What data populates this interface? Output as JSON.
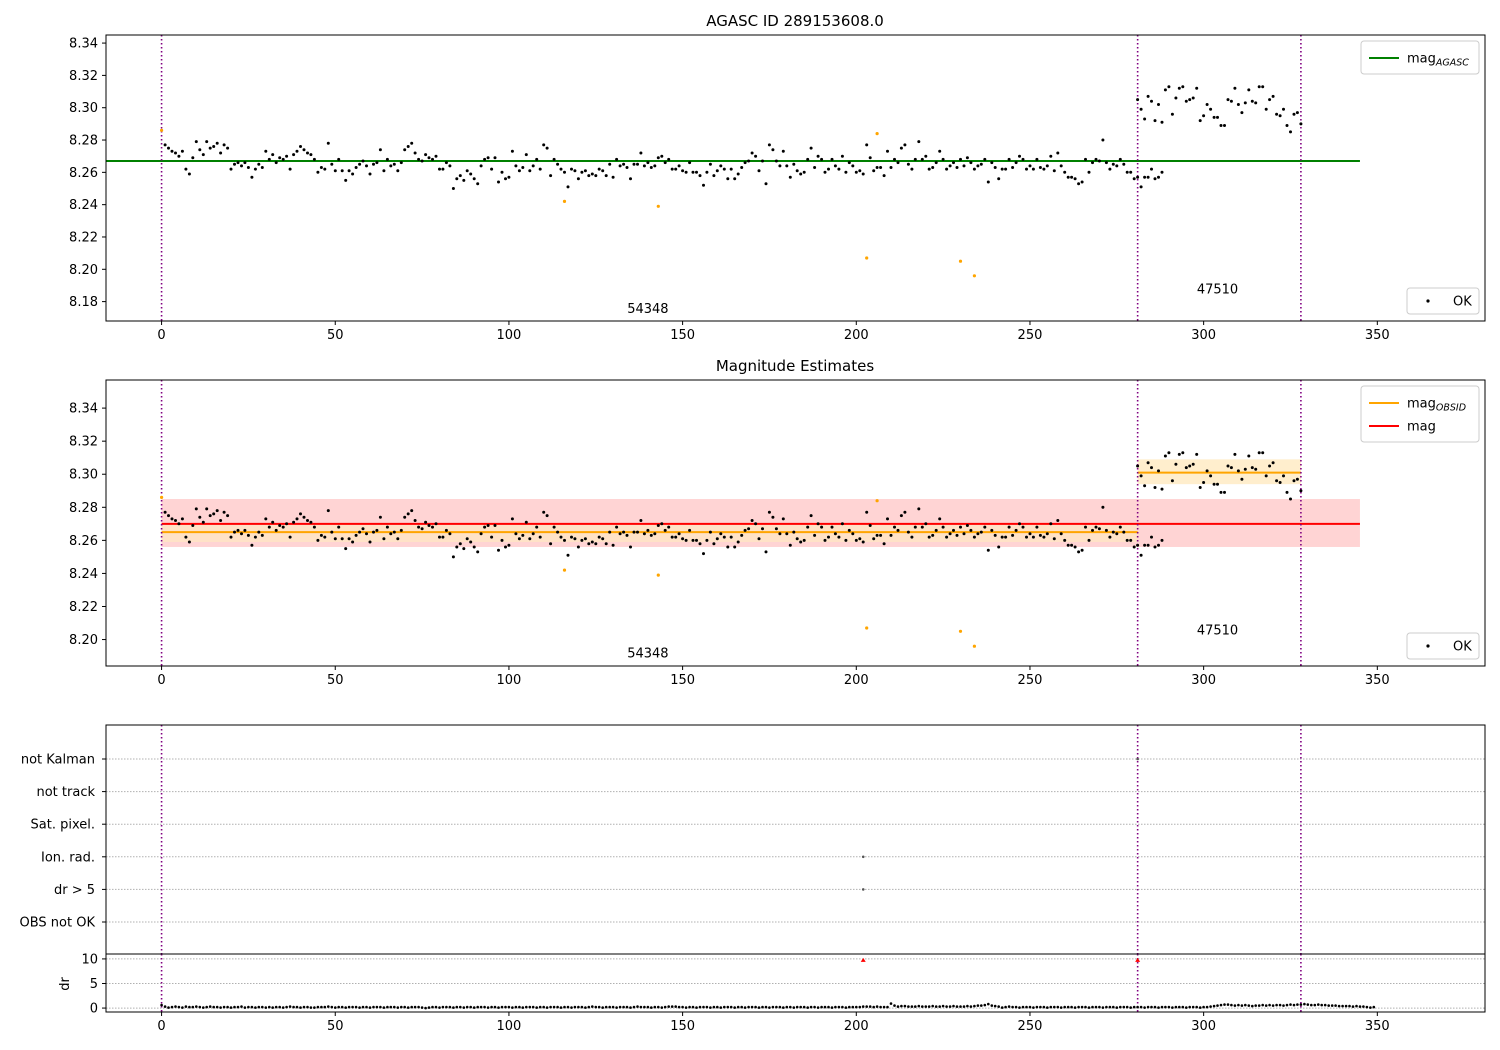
{
  "figure": {
    "title": "AGASC ID 289153608.0",
    "subtitle": "Magnitude Estimates"
  },
  "colors": {
    "ok_point": "#000000",
    "suspect_point": "#ffa500",
    "mag_agasc": "#008000",
    "mag_obsid": "#ffa500",
    "mag": "#ff0000",
    "mag_band": "#ffcccc",
    "obsid_band": "#ffebc4",
    "obs_boundary": "#800080",
    "grid": "#b0b0b0",
    "flag_point": "#ff0000"
  },
  "chart_data": [
    {
      "id": "agasc",
      "type": "scatter",
      "title": "AGASC ID 289153608.0",
      "xlim": [
        -16,
        381
      ],
      "ylim": [
        8.168,
        8.345
      ],
      "xticks": [
        0,
        50,
        100,
        150,
        200,
        250,
        300,
        350
      ],
      "yticks": [
        8.18,
        8.2,
        8.22,
        8.24,
        8.26,
        8.28,
        8.3,
        8.32,
        8.34
      ],
      "legend": [
        {
          "label": "mag",
          "sub": "AGASC",
          "kind": "line",
          "color": "#008000",
          "placement": "top-right"
        },
        {
          "label": "OK",
          "kind": "point",
          "color": "#000000",
          "placement": "bottom-right"
        }
      ],
      "hlines": [
        {
          "name": "mag_AGASC",
          "y": 8.267,
          "x": [
            -16,
            345
          ],
          "color": "#008000"
        }
      ],
      "vlines": [
        0,
        281,
        328
      ],
      "obsid_labels": [
        {
          "text": "54348",
          "x": 140,
          "y": 8.173
        },
        {
          "text": "47510",
          "x": 304,
          "y": 8.185
        }
      ],
      "series": [
        {
          "name": "OK",
          "color": "#000000",
          "x_start": 1,
          "y": [
            8.277,
            8.275,
            8.273,
            8.272,
            8.27,
            8.273,
            8.262,
            8.259,
            8.269,
            8.279,
            8.274,
            8.271,
            8.279,
            8.275,
            8.276,
            8.278,
            8.272,
            8.277,
            8.275,
            8.262,
            8.265,
            8.266,
            8.264,
            8.266,
            8.263,
            8.257,
            8.262,
            8.265,
            8.263,
            8.273,
            8.268,
            8.271,
            8.266,
            8.269,
            8.268,
            8.27,
            8.262,
            8.271,
            8.273,
            8.276,
            8.274,
            8.272,
            8.271,
            8.268,
            8.26,
            8.263,
            8.262,
            8.278,
            8.265,
            8.261,
            8.268,
            8.261,
            8.255,
            8.261,
            8.259,
            8.263,
            8.265,
            8.267,
            8.264,
            8.259,
            8.265,
            8.266,
            8.274,
            8.261,
            8.268,
            8.264,
            8.265,
            8.261,
            8.266,
            8.274,
            8.276,
            8.278,
            8.272,
            8.268,
            8.267,
            8.271,
            8.269,
            8.268,
            8.27,
            8.262,
            8.262,
            8.266,
            8.264,
            8.25,
            8.256,
            8.258,
            8.255,
            8.261,
            8.259,
            8.256,
            8.253,
            8.264,
            8.268,
            8.269,
            8.262,
            8.269,
            8.254,
            8.26,
            8.256,
            8.257,
            8.273,
            8.264,
            8.261,
            8.263,
            8.271,
            8.261,
            8.264,
            8.268,
            8.262,
            8.277,
            8.275,
            8.258,
            8.268,
            8.265,
            8.262,
            8.26,
            8.251,
            8.262,
            8.261,
            8.256,
            8.26,
            8.261,
            8.258,
            8.259,
            8.258,
            8.262,
            8.261,
            8.258,
            8.265,
            8.257,
            8.268,
            8.264,
            8.265,
            8.263,
            8.256,
            8.265,
            8.265,
            8.272,
            8.264,
            8.266,
            8.263,
            8.264,
            8.269,
            8.27,
            8.266,
            8.268,
            8.262,
            8.262,
            8.264,
            8.261,
            8.26,
            8.266,
            8.26,
            8.26,
            8.258,
            8.252,
            8.26,
            8.265,
            8.258,
            8.261,
            8.264,
            8.262,
            8.256,
            8.262,
            8.256,
            8.259,
            8.263,
            8.266,
            8.267,
            8.272,
            8.27,
            8.261,
            8.267,
            8.253,
            8.277,
            8.274,
            8.267,
            8.264,
            8.273,
            8.264,
            8.257,
            8.265,
            8.261,
            8.259,
            8.26,
            8.268,
            8.275,
            8.263,
            8.27,
            8.268,
            8.26,
            8.262,
            8.268,
            8.264,
            8.262,
            8.27,
            8.26,
            8.266,
            8.264,
            8.26,
            8.261,
            8.259,
            8.277,
            8.269,
            8.261,
            8.263,
            8.263,
            8.258,
            8.273,
            8.263,
            8.268,
            8.266,
            8.275,
            8.277,
            8.265,
            8.262,
            8.268,
            8.279,
            8.268,
            8.27,
            8.262,
            8.263,
            8.266,
            8.273,
            8.268,
            8.262,
            8.264,
            8.266,
            8.263,
            8.268,
            8.264,
            8.269,
            8.266,
            8.262,
            8.264,
            8.265,
            8.268,
            8.254,
            8.266,
            8.263,
            8.256,
            8.262,
            8.262,
            8.268,
            8.263,
            8.266,
            8.27,
            8.268,
            8.262,
            8.264,
            8.262,
            8.268,
            8.263,
            8.262,
            8.264,
            8.27,
            8.261,
            8.272,
            8.264,
            8.26,
            8.257,
            8.257,
            8.256,
            8.253,
            8.254,
            8.268,
            8.26,
            8.266,
            8.268,
            8.267,
            8.28,
            8.266,
            8.262,
            8.265,
            8.264,
            8.268,
            8.265,
            8.26,
            8.26,
            8.256,
            8.257,
            8.251,
            8.257,
            8.257,
            8.262,
            8.256,
            8.257,
            8.26
          ]
        },
        {
          "name": "OK-obs2",
          "color": "#000000",
          "x_start": 281,
          "y": [
            8.305,
            8.299,
            8.293,
            8.307,
            8.304,
            8.292,
            8.302,
            8.291,
            8.311,
            8.313,
            8.296,
            8.306,
            8.312,
            8.313,
            8.304,
            8.305,
            8.306,
            8.312,
            8.292,
            8.295,
            8.302,
            8.299,
            8.294,
            8.294,
            8.289,
            8.289,
            8.305,
            8.304,
            8.312,
            8.302,
            8.297,
            8.303,
            8.311,
            8.304,
            8.303,
            8.313,
            8.313,
            8.299,
            8.305,
            8.307,
            8.296,
            8.295,
            8.299,
            8.289,
            8.285,
            8.296,
            8.297,
            8.29
          ]
        },
        {
          "name": "suspect",
          "color": "#ffa500",
          "points": [
            [
              0,
              8.286
            ],
            [
              116,
              8.242
            ],
            [
              143,
              8.239
            ],
            [
              203,
              8.207
            ],
            [
              206,
              8.284
            ],
            [
              230,
              8.205
            ],
            [
              234,
              8.196
            ]
          ]
        }
      ]
    },
    {
      "id": "estimates",
      "type": "scatter",
      "title": "Magnitude Estimates",
      "xlim": [
        -16,
        381
      ],
      "ylim": [
        8.184,
        8.357
      ],
      "xticks": [
        0,
        50,
        100,
        150,
        200,
        250,
        300,
        350
      ],
      "yticks": [
        8.2,
        8.22,
        8.24,
        8.26,
        8.28,
        8.3,
        8.32,
        8.34
      ],
      "legend": [
        {
          "label": "mag",
          "sub": "OBSID",
          "kind": "line",
          "color": "#ffa500",
          "placement": "top-right"
        },
        {
          "label": "mag",
          "kind": "line",
          "color": "#ff0000",
          "placement": "top-right"
        },
        {
          "label": "OK",
          "kind": "point",
          "color": "#000000",
          "placement": "bottom-right"
        }
      ],
      "bands": [
        {
          "name": "mag",
          "y": [
            8.256,
            8.285
          ],
          "x": [
            0,
            345
          ],
          "color": "#ffcccc"
        },
        {
          "name": "mag_OBSID-1",
          "y": [
            8.259,
            8.27
          ],
          "x": [
            0,
            281
          ],
          "color": "#ffe4c4"
        },
        {
          "name": "mag_OBSID-2",
          "y": [
            8.294,
            8.309
          ],
          "x": [
            281,
            328
          ],
          "color": "#ffebc4"
        }
      ],
      "hlines": [
        {
          "name": "mag",
          "y": 8.27,
          "x": [
            0,
            345
          ],
          "color": "#ff0000"
        },
        {
          "name": "mag_OBSID-1",
          "y": 8.265,
          "x": [
            0,
            281
          ],
          "color": "#ffa500"
        },
        {
          "name": "mag_OBSID-2",
          "y": 8.301,
          "x": [
            281,
            328
          ],
          "color": "#ffa500"
        }
      ],
      "vlines": [
        0,
        281,
        328
      ],
      "obsid_labels": [
        {
          "text": "54348",
          "x": 140,
          "y": 8.189
        },
        {
          "text": "47510",
          "x": 304,
          "y": 8.203
        }
      ],
      "reuse_series_from": "agasc"
    },
    {
      "id": "flags",
      "type": "scatter",
      "xlim": [
        -16,
        381
      ],
      "categories": [
        "not Kalman",
        "not track",
        "Sat. pixel.",
        "Ion. rad.",
        "dr > 5",
        "OBS not OK"
      ],
      "flag_points": [
        {
          "category": "not Kalman",
          "x": 281
        },
        {
          "category": "Ion. rad.",
          "x": 202
        },
        {
          "category": "dr > 5",
          "x": 202
        }
      ],
      "vlines": [
        0,
        281,
        328
      ]
    },
    {
      "id": "dr",
      "type": "scatter",
      "ylabel": "dr",
      "xlim": [
        -16,
        381
      ],
      "ylim": [
        -0.8,
        11
      ],
      "yticks": [
        0,
        5,
        10
      ],
      "xticks": [
        0,
        50,
        100,
        150,
        200,
        250,
        300,
        350
      ],
      "vlines": [
        0,
        281,
        328
      ],
      "series": [
        {
          "name": "dr",
          "color": "#000000",
          "x_start": 0,
          "y": [
            0.6,
            0.3,
            0.1,
            0.2,
            0.3,
            0.2,
            0.1,
            0.3,
            0.2,
            0.2,
            0.3,
            0.2,
            0.1,
            0.2,
            0.3,
            0.2,
            0.2,
            0.1,
            0.2,
            0.2,
            0.1,
            0.2,
            0.2,
            0.3,
            0.1,
            0.2,
            0.2,
            0.1,
            0.2,
            0.2,
            0.1,
            0.2,
            0.1,
            0.2,
            0.2,
            0.1,
            0.2,
            0.3,
            0.2,
            0.2,
            0.1,
            0.2,
            0.2,
            0.1,
            0.1,
            0.2,
            0.2,
            0.2,
            0.3,
            0.2,
            0.1,
            0.2,
            0.2,
            0.1,
            0.2,
            0.2,
            0.2,
            0.1,
            0.2,
            0.2,
            0.1,
            0.2,
            0.2,
            0.2,
            0.1,
            0.2,
            0.2,
            0.2,
            0.1,
            0.2,
            0.2,
            0.1,
            0.2,
            0.2,
            0.2,
            0.1,
            0.0,
            0.1,
            0.2,
            0.2,
            0.1,
            0.2,
            0.2,
            0.2,
            0.1,
            0.2,
            0.2,
            0.1,
            0.2,
            0.2,
            0.1,
            0.2,
            0.2,
            0.2,
            0.1,
            0.2,
            0.2,
            0.1,
            0.2,
            0.2,
            0.2,
            0.1,
            0.2,
            0.2,
            0.1,
            0.2,
            0.2,
            0.2,
            0.1,
            0.2,
            0.2,
            0.1,
            0.2,
            0.2,
            0.2,
            0.1,
            0.2,
            0.2,
            0.1,
            0.2,
            0.2,
            0.2,
            0.1,
            0.2,
            0.3,
            0.2,
            0.2,
            0.1,
            0.2,
            0.2,
            0.2,
            0.1,
            0.2,
            0.2,
            0.2,
            0.1,
            0.2,
            0.3,
            0.2,
            0.2,
            0.2,
            0.1,
            0.2,
            0.2,
            0.1,
            0.2,
            0.3,
            0.3,
            0.3,
            0.2,
            0.2,
            0.1,
            0.2,
            0.2,
            0.1,
            0.2,
            0.2,
            0.2,
            0.1,
            0.2,
            0.2,
            0.1,
            0.2,
            0.2,
            0.2,
            0.1,
            0.2,
            0.2,
            0.1,
            0.2,
            0.2,
            0.2,
            0.1,
            0.2,
            0.2,
            0.1,
            0.2,
            0.2,
            0.2,
            0.1,
            0.2,
            0.2,
            0.1,
            0.2,
            0.2,
            0.2,
            0.1,
            0.2,
            0.2,
            0.1,
            0.2,
            0.2,
            0.2,
            0.1,
            0.2,
            0.2,
            0.2,
            0.1,
            0.2,
            0.2,
            0.2,
            0.2,
            0.3,
            0.3,
            0.3,
            0.2,
            0.3,
            0.2,
            0.2,
            0.2,
            0.9,
            0.5,
            0.3,
            0.4,
            0.4,
            0.3,
            0.3,
            0.3,
            0.4,
            0.3,
            0.3,
            0.3,
            0.4,
            0.3,
            0.3,
            0.4,
            0.3,
            0.3,
            0.4,
            0.3,
            0.3,
            0.3,
            0.4,
            0.3,
            0.4,
            0.5,
            0.5,
            0.6,
            0.8,
            0.5,
            0.4,
            0.3,
            0.1,
            0.2,
            0.3,
            0.2,
            0.2,
            0.1,
            0.2,
            0.2,
            0.2,
            0.1,
            0.2,
            0.2,
            0.2,
            0.1,
            0.2,
            0.2,
            0.2,
            0.1,
            0.2,
            0.2,
            0.2,
            0.1,
            0.2,
            0.2,
            0.2,
            0.1,
            0.2,
            0.2,
            0.2,
            0.1,
            0.2,
            0.2,
            0.2,
            0.1,
            0.2,
            0.2,
            0.2,
            0.1,
            0.2,
            0.2,
            0.2,
            0.1,
            0.2,
            0.2,
            0.2,
            0.1,
            0.2,
            0.2,
            0.2,
            0.1,
            0.2,
            0.2,
            0.2,
            0.1,
            0.2,
            0.2,
            0.2,
            0.1,
            0.2,
            0.2,
            0.3,
            0.4,
            0.5,
            0.6,
            0.7,
            0.7,
            0.6,
            0.5,
            0.6,
            0.5,
            0.6,
            0.5,
            0.4,
            0.5,
            0.5,
            0.6,
            0.5,
            0.6,
            0.5,
            0.6,
            0.6,
            0.5,
            0.6,
            0.7,
            0.6,
            0.7,
            0.7,
            0.8,
            0.7,
            0.6,
            0.6,
            0.7,
            0.6,
            0.6,
            0.5,
            0.5,
            0.5,
            0.4,
            0.4,
            0.4,
            0.4,
            0.3,
            0.4,
            0.3,
            0.3,
            0.2,
            0.1,
            0.2
          ]
        },
        {
          "name": "dr-flag",
          "color": "#ff0000",
          "points": [
            [
              202,
              9.8
            ],
            [
              281,
              9.8
            ]
          ]
        }
      ]
    }
  ]
}
